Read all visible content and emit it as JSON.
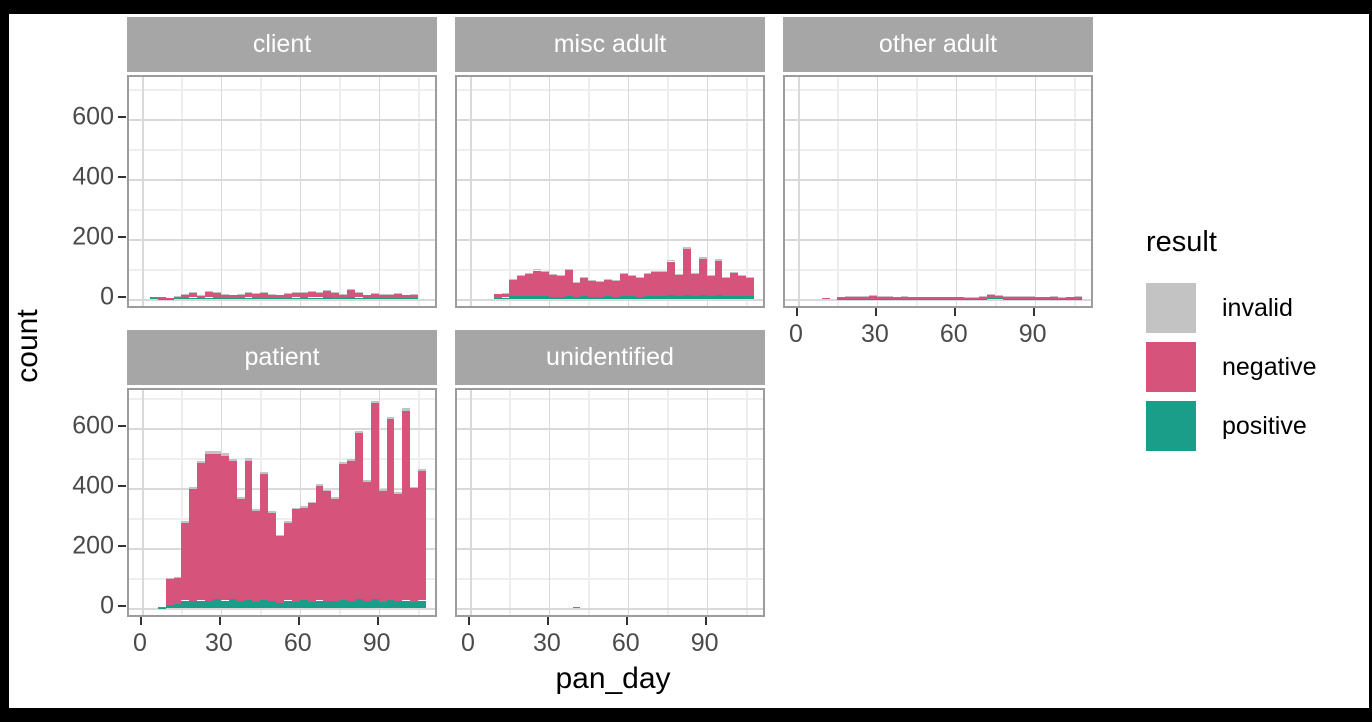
{
  "figure": {
    "x_axis_title": "pan_day",
    "y_axis_title": "count",
    "legend": {
      "title": "result",
      "items": [
        {
          "label": "invalid",
          "color": "#c3c3c3"
        },
        {
          "label": "negative",
          "color": "#d6547b"
        },
        {
          "label": "positive",
          "color": "#1b9e89"
        }
      ]
    }
  },
  "chart_data": {
    "type": "bar",
    "subtype": "faceted-stacked-histogram",
    "title": "",
    "xlabel": "pan_day",
    "ylabel": "count",
    "legend_title": "result",
    "legend_position": "right",
    "grid": true,
    "x_ticks": [
      0,
      30,
      60,
      90
    ],
    "x_minor_ticks": [
      15,
      45,
      75,
      105
    ],
    "y_ticks": [
      0,
      200,
      400,
      600
    ],
    "y_minor_ticks": [
      100,
      300,
      500,
      700
    ],
    "x_range": [
      -5,
      113
    ],
    "y_range": [
      0,
      740
    ],
    "bin_width": 3,
    "series_names": [
      "positive",
      "negative",
      "invalid"
    ],
    "facets": [
      {
        "name": "client",
        "row": 0,
        "col": 0,
        "x_axis": false,
        "bin_start": 3,
        "positive": [
          2,
          1,
          1,
          2,
          4,
          5,
          3,
          5,
          4,
          3,
          2,
          3,
          5,
          4,
          4,
          3,
          2,
          4,
          5,
          4,
          5,
          5,
          6,
          4,
          3,
          6,
          5,
          2,
          4,
          3,
          3,
          4,
          3,
          4
        ],
        "negative": [
          6,
          5,
          3,
          7,
          13,
          18,
          11,
          21,
          17,
          14,
          10,
          12,
          18,
          15,
          17,
          12,
          11,
          15,
          18,
          17,
          21,
          19,
          22,
          17,
          14,
          27,
          19,
          10,
          15,
          12,
          14,
          15,
          11,
          13
        ],
        "invalid": [
          0,
          0,
          0,
          1,
          1,
          2,
          1,
          2,
          1,
          1,
          0,
          1,
          2,
          1,
          1,
          1,
          0,
          1,
          2,
          1,
          2,
          1,
          2,
          1,
          1,
          2,
          1,
          0,
          1,
          1,
          1,
          1,
          0,
          1
        ]
      },
      {
        "name": "misc adult",
        "row": 0,
        "col": 1,
        "x_axis": false,
        "bin_start": 6,
        "positive": [
          0,
          4,
          5,
          10,
          10,
          9,
          10,
          9,
          8,
          8,
          10,
          8,
          9,
          8,
          8,
          9,
          8,
          9,
          9,
          8,
          9,
          10,
          10,
          12,
          9,
          12,
          10,
          12,
          9,
          12,
          9,
          10,
          10,
          10
        ],
        "negative": [
          0,
          14,
          14,
          56,
          69,
          76,
          85,
          80,
          74,
          69,
          86,
          48,
          62,
          56,
          50,
          57,
          53,
          77,
          70,
          63,
          77,
          79,
          82,
          113,
          73,
          155,
          75,
          123,
          68,
          116,
          62,
          77,
          69,
          62
        ],
        "invalid": [
          0,
          0,
          1,
          2,
          2,
          3,
          4,
          3,
          2,
          2,
          3,
          1,
          2,
          1,
          1,
          2,
          1,
          2,
          2,
          2,
          2,
          3,
          3,
          4,
          2,
          6,
          3,
          5,
          2,
          4,
          2,
          3,
          2,
          3
        ]
      },
      {
        "name": "other adult",
        "row": 0,
        "col": 2,
        "x_axis": true,
        "bin_start": 6,
        "positive": [
          0,
          0,
          0,
          1,
          1,
          1,
          1,
          1,
          1,
          1,
          1,
          1,
          1,
          1,
          1,
          1,
          1,
          1,
          1,
          1,
          1,
          1,
          2,
          2,
          1,
          1,
          1,
          1,
          1,
          1,
          1,
          1,
          1,
          1
        ],
        "negative": [
          0,
          2,
          0,
          5,
          7,
          8,
          7,
          10,
          9,
          8,
          7,
          7,
          7,
          6,
          5,
          5,
          6,
          5,
          5,
          5,
          6,
          7,
          12,
          10,
          8,
          7,
          9,
          7,
          7,
          6,
          7,
          6,
          5,
          7
        ],
        "invalid": [
          0,
          0,
          0,
          0,
          1,
          1,
          1,
          1,
          1,
          1,
          0,
          1,
          0,
          0,
          0,
          0,
          0,
          0,
          0,
          1,
          1,
          1,
          2,
          1,
          1,
          1,
          1,
          1,
          0,
          0,
          1,
          1,
          0,
          1
        ]
      },
      {
        "name": "patient",
        "row": 1,
        "col": 0,
        "x_axis": true,
        "bin_start": 6,
        "positive": [
          1,
          10,
          12,
          25,
          22,
          25,
          22,
          30,
          25,
          30,
          22,
          28,
          20,
          28,
          22,
          18,
          25,
          20,
          28,
          20,
          25,
          22,
          25,
          28,
          22,
          30,
          22,
          30,
          20,
          28,
          22,
          25,
          20,
          25
        ],
        "negative": [
          3,
          88,
          90,
          259,
          375,
          457,
          493,
          484,
          481,
          460,
          342,
          462,
          304,
          419,
          295,
          222,
          259,
          310,
          306,
          330,
          382,
          367,
          340,
          452,
          468,
          553,
          398,
          652,
          371,
          602,
          359,
          633,
          379,
          432
        ],
        "invalid": [
          0,
          2,
          3,
          6,
          8,
          8,
          10,
          8,
          10,
          8,
          6,
          10,
          6,
          8,
          8,
          5,
          6,
          5,
          6,
          5,
          8,
          6,
          5,
          8,
          6,
          8,
          6,
          8,
          6,
          8,
          5,
          10,
          5,
          6
        ]
      },
      {
        "name": "unidentified",
        "row": 1,
        "col": 1,
        "x_axis": true,
        "bin_start": 6,
        "positive": [
          0,
          0,
          0,
          0,
          0,
          0,
          0,
          0,
          0,
          0,
          0,
          0,
          0,
          0,
          0,
          0,
          0,
          0,
          0,
          0,
          0,
          0,
          0,
          0,
          0,
          0,
          0,
          0,
          0,
          0,
          0,
          0,
          0,
          0
        ],
        "negative": [
          0,
          0,
          0,
          0,
          0,
          0,
          0,
          0,
          0,
          0,
          0,
          2,
          0,
          0,
          0,
          0,
          0,
          0,
          0,
          0,
          0,
          0,
          0,
          0,
          0,
          0,
          0,
          0,
          0,
          0,
          0,
          0,
          0,
          0
        ],
        "invalid": [
          0,
          0,
          0,
          0,
          0,
          0,
          0,
          0,
          0,
          0,
          0,
          0,
          0,
          0,
          0,
          0,
          0,
          0,
          0,
          0,
          0,
          0,
          0,
          0,
          0,
          0,
          0,
          0,
          0,
          0,
          0,
          0,
          0,
          0
        ]
      }
    ]
  }
}
